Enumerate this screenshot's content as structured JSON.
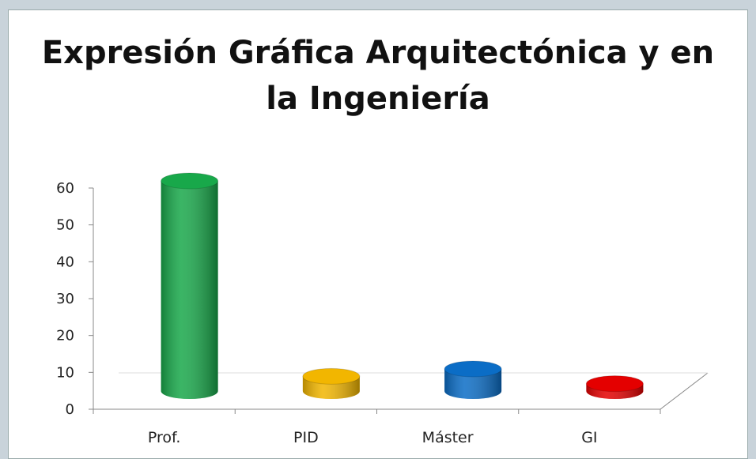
{
  "chart_data": {
    "type": "bar3d",
    "title_lines": [
      "Expresión Gráfica Arquitectónica y en",
      "la Ingeniería"
    ],
    "categories": [
      "Prof.",
      "PID",
      "Máster",
      "GI"
    ],
    "values": [
      57,
      4,
      6,
      2
    ],
    "colors": [
      "#18a84a",
      "#f2b600",
      "#0b6dc6",
      "#e40000"
    ],
    "ylim": [
      0,
      60
    ],
    "yticks": [
      0,
      10,
      20,
      30,
      40,
      50,
      60
    ]
  }
}
